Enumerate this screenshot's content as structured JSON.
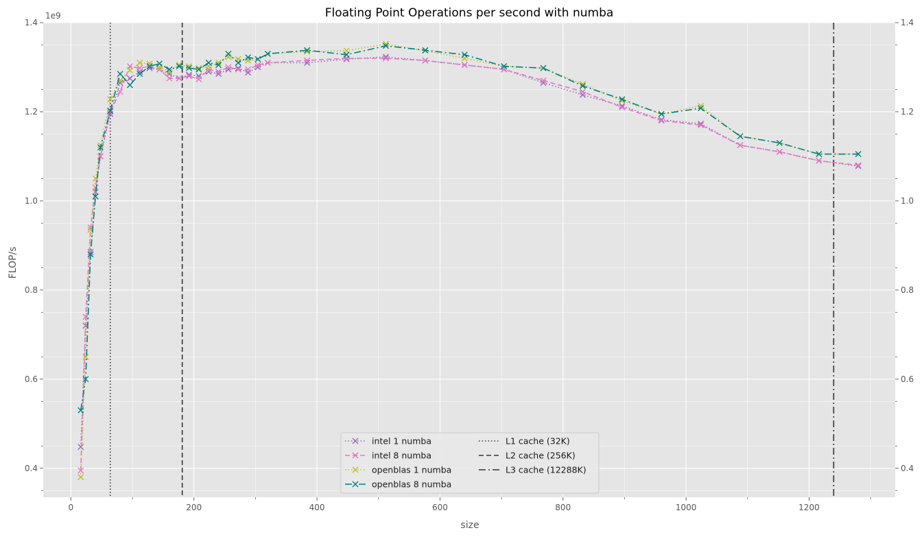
{
  "chart_data": {
    "type": "line",
    "title": "Floating Point Operations per second with numba",
    "xlabel": "size",
    "ylabel": "FLOP/s",
    "y_offset_label": "1e9",
    "xlim": [
      -45,
      1340
    ],
    "ylim": [
      0.335,
      1.4
    ],
    "x_ticks": [
      0,
      200,
      400,
      600,
      800,
      1000,
      1200
    ],
    "y_ticks": [
      0.4,
      0.6,
      0.8,
      1.0,
      1.2,
      1.4
    ],
    "y_tick_labels": [
      "0.4",
      "0.6",
      "0.8",
      "1.0",
      "1.2",
      "1.4"
    ],
    "grid": true,
    "secondary_y_axis": true,
    "legend_position": "bottom-center",
    "series": [
      {
        "name": "intel 1 numba",
        "color": "#9467bd",
        "dash": "dotted",
        "x": [
          16,
          24,
          32,
          40,
          48,
          64,
          80,
          96,
          112,
          128,
          144,
          160,
          176,
          192,
          208,
          224,
          240,
          256,
          272,
          288,
          304,
          320,
          384,
          448,
          512,
          576,
          640,
          704,
          768,
          832,
          896,
          960,
          1024,
          1088,
          1152,
          1216,
          1280
        ],
        "y": [
          0.448,
          0.72,
          0.885,
          1.02,
          1.1,
          1.195,
          1.265,
          1.275,
          1.29,
          1.298,
          1.295,
          1.285,
          1.275,
          1.283,
          1.28,
          1.29,
          1.285,
          1.295,
          1.298,
          1.288,
          1.3,
          1.31,
          1.31,
          1.318,
          1.323,
          1.315,
          1.305,
          1.295,
          1.265,
          1.238,
          1.213,
          1.182,
          1.173,
          1.125,
          1.11,
          1.09,
          1.078
        ]
      },
      {
        "name": "intel 8 numba",
        "color": "#e377c2",
        "dash": "dashed",
        "x": [
          16,
          24,
          32,
          40,
          48,
          64,
          80,
          96,
          112,
          128,
          144,
          160,
          176,
          192,
          208,
          224,
          240,
          256,
          272,
          288,
          304,
          320,
          384,
          448,
          512,
          576,
          640,
          704,
          768,
          832,
          896,
          960,
          1024,
          1088,
          1152,
          1216,
          1280
        ],
        "y": [
          0.395,
          0.74,
          0.94,
          1.03,
          1.1,
          1.2,
          1.245,
          1.302,
          1.298,
          1.302,
          1.295,
          1.275,
          1.275,
          1.28,
          1.273,
          1.295,
          1.29,
          1.3,
          1.295,
          1.295,
          1.305,
          1.31,
          1.315,
          1.32,
          1.32,
          1.315,
          1.305,
          1.295,
          1.27,
          1.245,
          1.21,
          1.18,
          1.17,
          1.125,
          1.11,
          1.09,
          1.08
        ]
      },
      {
        "name": "openblas 1 numba",
        "color": "#bcbd22",
        "dash": "dotted",
        "x": [
          16,
          24,
          32,
          40,
          48,
          64,
          80,
          96,
          112,
          128,
          144,
          160,
          176,
          192,
          208,
          224,
          240,
          256,
          272,
          288,
          304,
          320,
          384,
          448,
          512,
          576,
          640,
          704,
          768,
          832,
          896,
          960,
          1024,
          1088,
          1152,
          1216,
          1280
        ],
        "y": [
          0.38,
          0.65,
          0.935,
          1.05,
          1.125,
          1.228,
          1.27,
          1.293,
          1.31,
          1.308,
          1.3,
          1.29,
          1.305,
          1.302,
          1.298,
          1.302,
          1.31,
          1.323,
          1.318,
          1.315,
          1.318,
          1.33,
          1.335,
          1.337,
          1.352,
          1.337,
          1.32,
          1.302,
          1.298,
          1.262,
          1.225,
          1.195,
          1.213,
          1.145,
          1.13,
          1.105,
          1.105
        ]
      },
      {
        "name": "openblas 8 numba",
        "color": "#008080",
        "dash": "dashdot",
        "x": [
          16,
          24,
          32,
          40,
          48,
          64,
          80,
          96,
          112,
          128,
          144,
          160,
          176,
          192,
          208,
          224,
          240,
          256,
          272,
          288,
          304,
          320,
          384,
          448,
          512,
          576,
          640,
          704,
          768,
          832,
          896,
          960,
          1024,
          1088,
          1152,
          1216,
          1280
        ],
        "y": [
          0.53,
          0.6,
          0.88,
          1.01,
          1.12,
          1.202,
          1.285,
          1.26,
          1.285,
          1.302,
          1.308,
          1.295,
          1.302,
          1.298,
          1.295,
          1.31,
          1.305,
          1.33,
          1.31,
          1.322,
          1.318,
          1.33,
          1.338,
          1.328,
          1.348,
          1.338,
          1.328,
          1.302,
          1.298,
          1.258,
          1.228,
          1.195,
          1.208,
          1.145,
          1.13,
          1.105,
          1.105
        ]
      }
    ],
    "reference_lines": [
      {
        "name": "L1 cache (32K)",
        "x": 64,
        "dash": "dotted",
        "color": "#333333"
      },
      {
        "name": "L2 cache (256K)",
        "x": 181,
        "dash": "dashed",
        "color": "#333333"
      },
      {
        "name": "L3 cache (12288K)",
        "x": 1240,
        "dash": "dashdot",
        "color": "#333333"
      }
    ]
  }
}
